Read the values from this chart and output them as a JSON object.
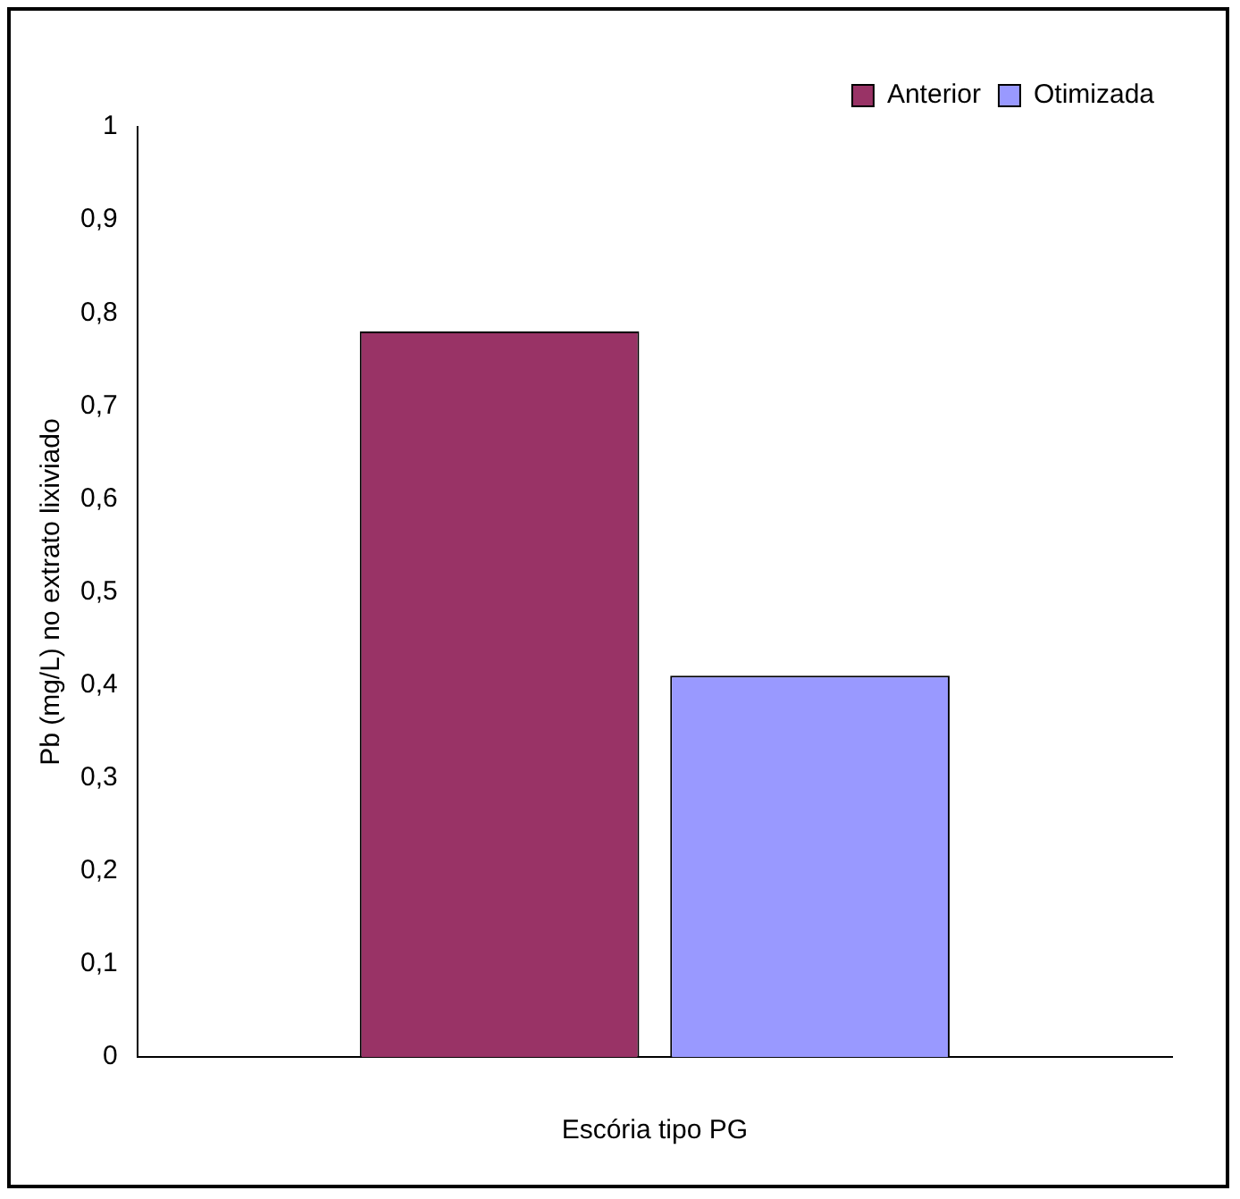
{
  "chart_data": {
    "type": "bar",
    "xlabel": "Escória tipo PG",
    "ylabel": "Pb (mg/L) no extrato lixiviado",
    "categories": [
      null
    ],
    "series": [
      {
        "name": "Anterior",
        "color": "#993366",
        "values": [
          0.78
        ]
      },
      {
        "name": "Otimizada",
        "color": "#9999ff",
        "values": [
          0.41
        ]
      }
    ],
    "ylim": [
      0,
      1
    ],
    "yticks": [
      {
        "value": 0,
        "label": "0"
      },
      {
        "value": 0.1,
        "label": "0,1"
      },
      {
        "value": 0.2,
        "label": "0,2"
      },
      {
        "value": 0.3,
        "label": "0,3"
      },
      {
        "value": 0.4,
        "label": "0,4"
      },
      {
        "value": 0.5,
        "label": "0,5"
      },
      {
        "value": 0.6,
        "label": "0,6"
      },
      {
        "value": 0.7,
        "label": "0,7"
      },
      {
        "value": 0.8,
        "label": "0,8"
      },
      {
        "value": 0.9,
        "label": "0,9"
      },
      {
        "value": 1,
        "label": "1"
      }
    ],
    "grid": false,
    "legend": "top right"
  }
}
